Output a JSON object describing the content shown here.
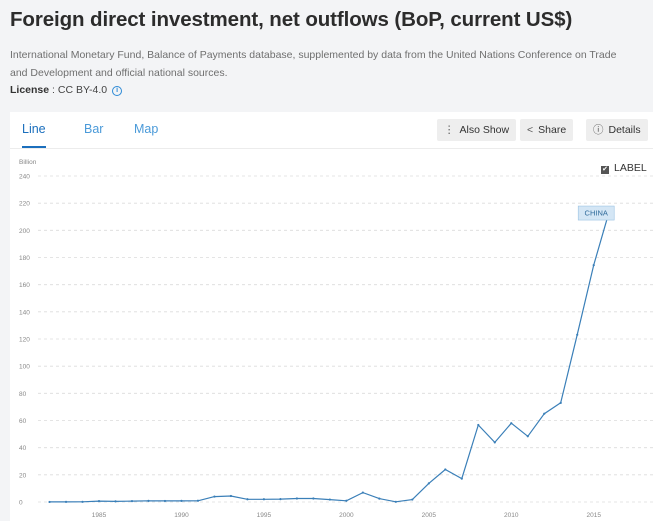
{
  "header": {
    "title": "Foreign direct investment, net outflows (BoP, current US$)",
    "source_line1": "International Monetary Fund, Balance of Payments database, supplemented by data from the United Nations Conference on Trade",
    "source_line2": "and Development and official national sources.",
    "license_label": "License",
    "license_value": " : CC BY-4.0"
  },
  "tabs": [
    {
      "label": "Line",
      "active": true
    },
    {
      "label": "Bar",
      "active": false
    },
    {
      "label": "Map",
      "active": false
    }
  ],
  "actions": {
    "also_show": "Also Show",
    "share": "Share",
    "details": "Details"
  },
  "label_toggle": {
    "text": "LABEL",
    "checked": true
  },
  "colors": {
    "line": "#3a7fb8",
    "accent": "#1b6fbd",
    "label_bg": "#d4e6f5"
  },
  "chart_data": {
    "type": "line",
    "unit_label": "Billion",
    "x": [
      1982,
      1983,
      1984,
      1985,
      1986,
      1987,
      1988,
      1989,
      1990,
      1991,
      1992,
      1993,
      1994,
      1995,
      1996,
      1997,
      1998,
      1999,
      2000,
      2001,
      2002,
      2003,
      2004,
      2005,
      2006,
      2007,
      2008,
      2009,
      2010,
      2011,
      2012,
      2013,
      2014,
      2015,
      2016
    ],
    "series": [
      {
        "name": "CHINA",
        "values": [
          0.04,
          0.09,
          0.13,
          0.63,
          0.45,
          0.65,
          0.85,
          0.78,
          0.83,
          0.91,
          4.0,
          4.4,
          2.0,
          2.0,
          2.1,
          2.6,
          2.6,
          1.8,
          0.9,
          6.9,
          2.5,
          0.15,
          1.8,
          13.7,
          23.9,
          17.2,
          56.7,
          43.9,
          58.0,
          48.4,
          65.0,
          73.0,
          123.1,
          174.4,
          216.4
        ]
      }
    ],
    "ylim": [
      0,
      240
    ],
    "yticks": [
      0,
      20,
      40,
      60,
      80,
      100,
      120,
      140,
      160,
      180,
      200,
      220,
      240
    ],
    "xticks": [
      1985,
      1990,
      1995,
      2000,
      2005,
      2010,
      2015
    ],
    "xlim": [
      1981.3,
      2017.2
    ],
    "grid": true,
    "line_label": "CHINA"
  }
}
